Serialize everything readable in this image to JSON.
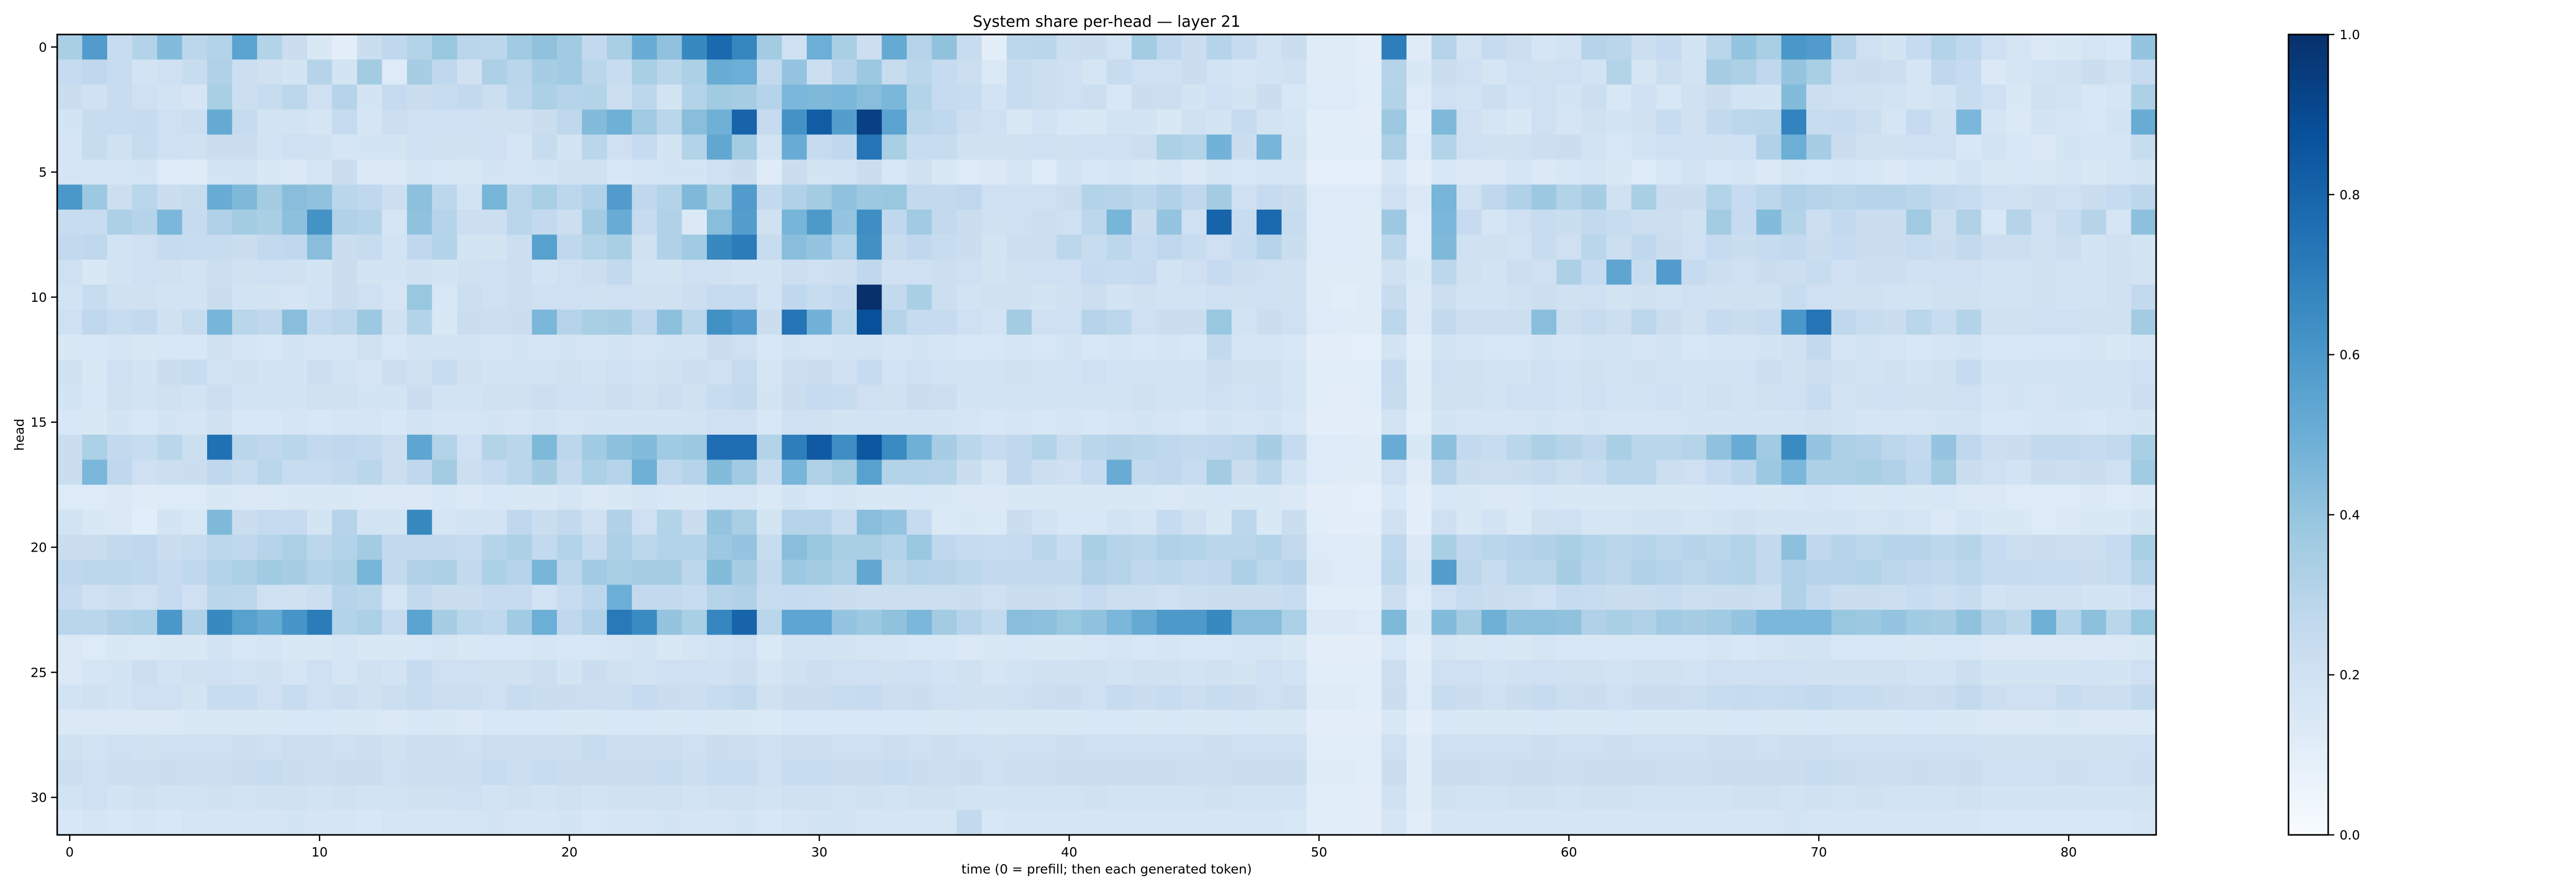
{
  "chart_data": {
    "type": "heatmap",
    "title": "System share per-head — layer 21",
    "xlabel": "time (0 = prefill; then each generated token)",
    "ylabel": "head",
    "n_cols": 84,
    "n_rows": 32,
    "x_range": [
      -0.5,
      83.5
    ],
    "y_range": [
      -0.5,
      31.5
    ],
    "x_ticks": [
      0,
      10,
      20,
      30,
      40,
      50,
      60,
      70,
      80
    ],
    "y_ticks": [
      0,
      5,
      10,
      15,
      20,
      25,
      30
    ],
    "colormap": "Blues",
    "colorbar": {
      "range": [
        0.0,
        1.0
      ],
      "ticks": [
        0.0,
        0.2,
        0.4,
        0.6,
        0.8,
        1.0
      ]
    },
    "values": [
      "0.34 0.58 0.24 0.31 0.44 0.28 0.31 0.55 0.31 0.23 0.15 0.10 0.23 0.27 0.31 0.39 0.29 0.28 0.37 0.41 0.37 0.26 0.34 0.51 0.41 0.66 0.78 0.67 0.36 0.21 0.50 0.34 0.22 0.52 0.30 0.41 0.24 0.10 0.28 0.29 0.22 0.23 0.19 0.36 0.27 0.23 0.30 0.25 0.19 0.23 0.12 0.12 0.10 0.70 0.12 0.30 0.19 0.25 0.22 0.17 0.19 0.30 0.29 0.22 0.25 0.18 0.29 0.40 0.34 0.60 0.58 0.30 0.21 0.18 0.25 0.31 0.27 0.21 0.17 0.14 0.15 0.17 0.16 0.40",
      "0.25 0.27 0.24 0.19 0.21 0.24 0.32 0.22 0.20 0.18 0.30 0.18 0.36 0.13 0.35 0.27 0.20 0.33 0.29 0.35 0.37 0.29 0.24 0.34 0.29 0.33 0.51 0.50 0.26 0.40 0.22 0.30 0.38 0.24 0.29 0.25 0.22 0.14 0.24 0.22 0.21 0.17 0.24 0.21 0.21 0.23 0.19 0.17 0.19 0.20 0.12 0.12 0.11 0.30 0.15 0.23 0.21 0.17 0.21 0.20 0.21 0.19 0.31 0.17 0.22 0.19 0.35 0.33 0.27 0.40 0.34 0.22 0.23 0.22 0.17 0.27 0.25 0.14 0.17 0.19 0.20 0.23 0.20 0.25",
      "0.23 0.20 0.24 0.21 0.19 0.17 0.34 0.22 0.24 0.28 0.21 0.30 0.18 0.25 0.23 0.24 0.26 0.22 0.28 0.33 0.30 0.31 0.22 0.28 0.18 0.31 0.37 0.35 0.30 0.46 0.45 0.46 0.43 0.46 0.31 0.25 0.24 0.19 0.24 0.22 0.21 0.22 0.16 0.23 0.22 0.18 0.21 0.18 0.23 0.16 0.13 0.13 0.11 0.31 0.13 0.21 0.19 0.22 0.19 0.21 0.18 0.22 0.16 0.21 0.16 0.20 0.23 0.19 0.18 0.44 0.22 0.21 0.20 0.19 0.17 0.19 0.24 0.21 0.15 0.20 0.19 0.16 0.17 0.33",
      "0.18 0.24 0.24 0.25 0.21 0.22 0.52 0.25 0.18 0.19 0.17 0.25 0.17 0.22 0.21 0.21 0.21 0.20 0.20 0.23 0.27 0.44 0.49 0.37 0.29 0.43 0.49 0.80 0.25 0.62 0.83 0.57 0.94 0.55 0.29 0.27 0.22 0.21 0.15 0.19 0.16 0.15 0.19 0.18 0.15 0.20 0.18 0.25 0.19 0.17 0.11 0.11 0.10 0.38 0.11 0.45 0.21 0.17 0.15 0.21 0.17 0.20 0.18 0.20 0.24 0.20 0.26 0.28 0.29 0.68 0.24 0.25 0.22 0.17 0.25 0.20 0.46 0.17 0.14 0.18 0.17 0.16 0.19 0.51",
      "0.17 0.24 0.20 0.24 0.21 0.20 0.23 0.23 0.19 0.21 0.20 0.17 0.18 0.18 0.21 0.20 0.20 0.21 0.17 0.24 0.18 0.29 0.21 0.25 0.18 0.31 0.53 0.36 0.19 0.51 0.25 0.27 0.74 0.34 0.24 0.24 0.20 0.20 0.20 0.21 0.20 0.21 0.21 0.22 0.33 0.31 0.48 0.23 0.47 0.18 0.11 0.11 0.11 0.33 0.13 0.31 0.21 0.20 0.20 0.22 0.23 0.19 0.16 0.19 0.21 0.21 0.20 0.21 0.32 0.50 0.35 0.23 0.20 0.20 0.21 0.21 0.16 0.19 0.16 0.14 0.18 0.17 0.17 0.24",
      "0.17 0.17 0.17 0.18 0.13 0.12 0.18 0.19 0.15 0.14 0.17 0.23 0.14 0.14 0.17 0.16 0.15 0.18 0.17 0.18 0.20 0.20 0.16 0.17 0.18 0.18 0.21 0.23 0.12 0.23 0.18 0.19 0.23 0.16 0.20 0.15 0.13 0.14 0.17 0.13 0.18 0.16 0.17 0.15 0.17 0.14 0.17 0.16 0.17 0.17 0.09 0.09 0.09 0.17 0.10 0.16 0.14 0.14 0.17 0.14 0.16 0.17 0.15 0.13 0.16 0.19 0.16 0.17 0.14 0.17 0.16 0.17 0.16 0.14 0.16 0.15 0.18 0.15 0.16 0.15 0.17 0.15 0.17 0.18",
      "0.60 0.38 0.22 0.29 0.23 0.24 0.51 0.45 0.36 0.43 0.41 0.29 0.27 0.22 0.42 0.28 0.19 0.47 0.29 0.34 0.28 0.32 0.58 0.27 0.31 0.45 0.34 0.58 0.26 0.32 0.36 0.41 0.38 0.39 0.26 0.26 0.27 0.21 0.21 0.21 0.23 0.31 0.30 0.28 0.32 0.27 0.36 0.21 0.25 0.23 0.13 0.13 0.13 0.21 0.14 0.47 0.20 0.27 0.32 0.38 0.31 0.35 0.20 0.34 0.23 0.23 0.31 0.25 0.28 0.32 0.30 0.29 0.30 0.30 0.29 0.26 0.24 0.21 0.20 0.22 0.21 0.23 0.25 0.28",
      "0.24 0.24 0.33 0.30 0.46 0.25 0.32 0.36 0.34 0.42 0.62 0.32 0.30 0.17 0.41 0.30 0.22 0.22 0.29 0.26 0.22 0.36 0.51 0.25 0.32 0.14 0.43 0.57 0.20 0.47 0.59 0.40 0.64 0.27 0.37 0.26 0.23 0.20 0.21 0.22 0.21 0.28 0.47 0.23 0.40 0.21 0.80 0.24 0.78 0.24 0.13 0.13 0.12 0.38 0.13 0.46 0.25 0.17 0.21 0.24 0.23 0.26 0.24 0.22 0.22 0.20 0.36 0.25 0.44 0.31 0.22 0.26 0.23 0.23 0.37 0.22 0.32 0.16 0.30 0.21 0.24 0.30 0.17 0.42",
      "0.26 0.27 0.19 0.21 0.25 0.24 0.24 0.23 0.26 0.27 0.43 0.23 0.24 0.19 0.27 0.31 0.18 0.18 0.22 0.56 0.27 0.31 0.34 0.20 0.32 0.37 0.66 0.71 0.24 0.43 0.40 0.31 0.63 0.24 0.27 0.24 0.23 0.18 0.22 0.22 0.28 0.24 0.28 0.24 0.27 0.24 0.21 0.25 0.30 0.23 0.13 0.13 0.12 0.28 0.13 0.45 0.20 0.20 0.19 0.24 0.21 0.29 0.22 0.27 0.23 0.21 0.25 0.23 0.25 0.26 0.23 0.25 0.23 0.23 0.24 0.23 0.26 0.22 0.22 0.20 0.22 0.18 0.20 0.18",
      "0.21 0.15 0.19 0.21 0.20 0.19 0.22 0.20 0.21 0.20 0.18 0.23 0.18 0.18 0.20 0.18 0.20 0.21 0.22 0.19 0.21 0.22 0.26 0.19 0.18 0.21 0.20 0.19 0.18 0.22 0.21 0.22 0.27 0.20 0.21 0.22 0.21 0.18 0.20 0.21 0.21 0.25 0.24 0.25 0.19 0.21 0.25 0.22 0.21 0.20 0.12 0.12 0.12 0.20 0.15 0.28 0.20 0.18 0.22 0.21 0.33 0.25 0.54 0.24 0.58 0.25 0.22 0.21 0.23 0.22 0.24 0.21 0.22 0.22 0.20 0.21 0.21 0.19 0.19 0.20 0.19 0.18 0.20 0.19",
      "0.19 0.24 0.20 0.20 0.19 0.19 0.23 0.19 0.18 0.17 0.19 0.23 0.21 0.17 0.39 0.16 0.22 0.21 0.22 0.21 0.21 0.20 0.21 0.20 0.20 0.22 0.25 0.25 0.19 0.27 0.24 0.26 1.00 0.26 0.34 0.22 0.19 0.20 0.20 0.18 0.20 0.22 0.18 0.20 0.19 0.19 0.21 0.20 0.21 0.20 0.12 0.11 0.12 0.24 0.14 0.22 0.19 0.19 0.20 0.22 0.20 0.21 0.18 0.20 0.19 0.21 0.20 0.20 0.20 0.24 0.21 0.20 0.20 0.19 0.19 0.20 0.20 0.19 0.19 0.20 0.19 0.19 0.20 0.26",
      "0.21 0.27 0.24 0.26 0.20 0.24 0.47 0.29 0.27 0.43 0.26 0.28 0.38 0.20 0.31 0.15 0.23 0.22 0.23 0.46 0.30 0.34 0.35 0.27 0.42 0.29 0.63 0.58 0.23 0.74 0.48 0.29 0.88 0.30 0.25 0.25 0.21 0.19 0.36 0.21 0.21 0.30 0.28 0.21 0.23 0.23 0.39 0.19 0.23 0.21 0.13 0.12 0.12 0.28 0.14 0.26 0.22 0.22 0.22 0.43 0.22 0.24 0.22 0.28 0.23 0.20 0.25 0.23 0.25 0.60 0.74 0.27 0.24 0.23 0.29 0.24 0.31 0.20 0.20 0.21 0.21 0.20 0.20 0.36",
      "0.15 0.16 0.17 0.15 0.16 0.16 0.20 0.17 0.16 0.18 0.17 0.17 0.20 0.16 0.18 0.18 0.18 0.17 0.18 0.17 0.18 0.17 0.18 0.17 0.18 0.18 0.23 0.21 0.16 0.18 0.17 0.18 0.19 0.17 0.18 0.17 0.16 0.16 0.17 0.16 0.18 0.16 0.17 0.16 0.17 0.16 0.26 0.17 0.17 0.16 0.10 0.10 0.09 0.18 0.11 0.19 0.17 0.16 0.16 0.18 0.17 0.19 0.18 0.17 0.18 0.16 0.17 0.17 0.18 0.20 0.26 0.17 0.18 0.17 0.16 0.17 0.18 0.16 0.16 0.16 0.16 0.17 0.15 0.17",
      "0.20 0.15 0.21 0.18 0.23 0.24 0.19 0.20 0.18 0.18 0.22 0.19 0.17 0.22 0.20 0.24 0.20 0.18 0.19 0.19 0.20 0.19 0.21 0.19 0.20 0.22 0.21 0.25 0.17 0.22 0.23 0.21 0.25 0.19 0.21 0.19 0.18 0.19 0.20 0.19 0.19 0.21 0.19 0.19 0.18 0.19 0.22 0.20 0.20 0.17 0.11 0.11 0.11 0.25 0.12 0.21 0.20 0.19 0.18 0.21 0.19 0.20 0.19 0.20 0.19 0.19 0.19 0.19 0.22 0.20 0.22 0.20 0.19 0.20 0.18 0.20 0.25 0.18 0.18 0.19 0.19 0.18 0.19 0.21",
      "0.18 0.16 0.20 0.19 0.20 0.19 0.22 0.19 0.19 0.18 0.20 0.20 0.18 0.18 0.23 0.19 0.19 0.20 0.20 0.22 0.21 0.20 0.22 0.20 0.22 0.20 0.24 0.26 0.18 0.23 0.25 0.24 0.21 0.20 0.23 0.22 0.18 0.18 0.19 0.19 0.18 0.19 0.19 0.20 0.19 0.19 0.21 0.19 0.21 0.17 0.11 0.10 0.11 0.24 0.12 0.20 0.20 0.19 0.21 0.21 0.19 0.21 0.19 0.19 0.21 0.18 0.20 0.19 0.20 0.21 0.24 0.19 0.20 0.21 0.20 0.20 0.21 0.17 0.18 0.17 0.19 0.18 0.18 0.22",
      "0.16 0.15 0.18 0.16 0.18 0.17 0.20 0.16 0.16 0.17 0.16 0.17 0.17 0.16 0.19 0.17 0.17 0.18 0.17 0.19 0.17 0.18 0.18 0.18 0.18 0.19 0.21 0.21 0.16 0.21 0.20 0.18 0.19 0.18 0.19 0.18 0.17 0.16 0.17 0.16 0.17 0.16 0.17 0.18 0.17 0.16 0.18 0.17 0.18 0.16 0.10 0.10 0.10 0.19 0.11 0.18 0.17 0.17 0.17 0.18 0.17 0.18 0.17 0.17 0.17 0.18 0.18 0.18 0.18 0.19 0.20 0.18 0.17 0.17 0.17 0.18 0.19 0.16 0.16 0.17 0.17 0.16 0.17 0.18",
      "0.23 0.33 0.26 0.24 0.29 0.22 0.75 0.29 0.27 0.29 0.26 0.27 0.26 0.22 0.54 0.31 0.21 0.31 0.29 0.45 0.28 0.37 0.42 0.44 0.37 0.38 0.76 0.76 0.31 0.70 0.84 0.64 0.85 0.65 0.49 0.35 0.29 0.25 0.27 0.31 0.24 0.29 0.30 0.29 0.27 0.26 0.27 0.28 0.35 0.25 0.13 0.13 0.12 0.51 0.15 0.42 0.26 0.24 0.29 0.33 0.30 0.27 0.34 0.29 0.29 0.30 0.41 0.51 0.37 0.65 0.40 0.33 0.32 0.28 0.26 0.40 0.27 0.22 0.23 0.26 0.26 0.25 0.26 0.34",
      "0.23 0.46 0.27 0.21 0.22 0.23 0.27 0.24 0.29 0.24 0.24 0.26 0.29 0.22 0.27 0.36 0.22 0.25 0.29 0.35 0.26 0.33 0.30 0.49 0.27 0.30 0.44 0.37 0.24 0.47 0.32 0.36 0.56 0.31 0.31 0.30 0.23 0.17 0.27 0.22 0.21 0.25 0.51 0.26 0.27 0.24 0.36 0.23 0.29 0.19 0.13 0.12 0.12 0.21 0.12 0.30 0.23 0.22 0.23 0.25 0.22 0.24 0.29 0.29 0.22 0.21 0.25 0.28 0.38 0.46 0.33 0.33 0.34 0.32 0.27 0.36 0.23 0.21 0.19 0.23 0.22 0.23 0.21 0.37",
      "0.13 0.13 0.14 0.12 0.13 0.13 0.15 0.14 0.14 0.15 0.15 0.15 0.14 0.14 0.14 0.16 0.14 0.16 0.15 0.15 0.17 0.14 0.15 0.17 0.16 0.15 0.17 0.17 0.14 0.18 0.16 0.17 0.15 0.15 0.16 0.15 0.14 0.14 0.15 0.15 0.15 0.15 0.15 0.15 0.14 0.15 0.16 0.15 0.15 0.14 0.10 0.10 0.09 0.16 0.10 0.16 0.15 0.14 0.14 0.16 0.15 0.15 0.15 0.15 0.15 0.15 0.16 0.16 0.15 0.16 0.17 0.16 0.15 0.16 0.15 0.16 0.14 0.14 0.13 0.13 0.13 0.14 0.13 0.14",
      "0.19 0.15 0.14 0.11 0.18 0.16 0.45 0.23 0.25 0.25 0.18 0.30 0.19 0.18 0.66 0.17 0.19 0.19 0.27 0.23 0.26 0.20 0.32 0.21 0.31 0.23 0.40 0.34 0.18 0.30 0.30 0.24 0.43 0.40 0.25 0.14 0.15 0.14 0.23 0.19 0.16 0.16 0.19 0.17 0.25 0.20 0.15 0.28 0.15 0.23 0.11 0.10 0.10 0.20 0.10 0.21 0.15 0.19 0.14 0.20 0.21 0.17 0.17 0.18 0.19 0.17 0.18 0.20 0.18 0.19 0.18 0.19 0.17 0.18 0.17 0.14 0.17 0.15 0.15 0.13 0.14 0.15 0.15 0.18",
      "0.23 0.23 0.26 0.27 0.23 0.24 0.28 0.27 0.30 0.33 0.28 0.31 0.36 0.26 0.26 0.26 0.25 0.30 0.33 0.26 0.31 0.25 0.33 0.28 0.31 0.31 0.38 0.40 0.24 0.43 0.39 0.34 0.34 0.31 0.39 0.27 0.25 0.24 0.25 0.29 0.24 0.34 0.30 0.29 0.32 0.31 0.29 0.29 0.31 0.26 0.13 0.13 0.12 0.27 0.14 0.34 0.27 0.29 0.30 0.32 0.34 0.31 0.29 0.30 0.28 0.30 0.29 0.31 0.26 0.42 0.27 0.30 0.28 0.30 0.30 0.28 0.30 0.25 0.22 0.23 0.22 0.22 0.25 0.34",
      "0.27 0.28 0.28 0.27 0.25 0.27 0.31 0.33 0.37 0.35 0.31 0.33 0.47 0.26 0.32 0.33 0.26 0.33 0.30 0.47 0.28 0.37 0.34 0.35 0.35 0.28 0.44 0.35 0.26 0.38 0.36 0.33 0.53 0.29 0.31 0.30 0.28 0.26 0.26 0.26 0.26 0.32 0.30 0.27 0.28 0.26 0.27 0.33 0.28 0.30 0.14 0.13 0.13 0.28 0.15 0.57 0.28 0.24 0.29 0.29 0.35 0.30 0.28 0.32 0.30 0.28 0.30 0.31 0.26 0.32 0.30 0.30 0.31 0.28 0.27 0.26 0.28 0.25 0.25 0.24 0.24 0.23 0.24 0.30",
      "0.25 0.20 0.22 0.21 0.25 0.21 0.29 0.28 0.21 0.20 0.22 0.30 0.29 0.17 0.26 0.23 0.23 0.25 0.25 0.19 0.24 0.28 0.50 0.26 0.26 0.24 0.30 0.32 0.24 0.25 0.24 0.23 0.22 0.22 0.22 0.22 0.23 0.21 0.23 0.23 0.22 0.25 0.22 0.22 0.21 0.22 0.23 0.23 0.23 0.24 0.11 0.11 0.11 0.22 0.13 0.21 0.24 0.23 0.22 0.21 0.25 0.24 0.23 0.23 0.24 0.22 0.23 0.23 0.22 0.32 0.26 0.23 0.23 0.22 0.24 0.22 0.24 0.19 0.20 0.20 0.20 0.18 0.18 0.21",
      "0.29 0.29 0.32 0.33 0.60 0.32 0.66 0.56 0.52 0.61 0.71 0.31 0.33 0.25 0.55 0.35 0.29 0.27 0.37 0.50 0.27 0.32 0.72 0.65 0.40 0.34 0.67 0.80 0.29 0.54 0.54 0.40 0.38 0.41 0.46 0.36 0.30 0.26 0.43 0.42 0.39 0.41 0.46 0.52 0.59 0.59 0.66 0.43 0.43 0.33 0.14 0.14 0.13 0.45 0.15 0.44 0.36 0.49 0.42 0.42 0.41 0.32 0.34 0.32 0.37 0.35 0.37 0.40 0.46 0.46 0.46 0.39 0.38 0.40 0.37 0.35 0.41 0.32 0.28 0.49 0.31 0.42 0.29 0.39",
      "0.14 0.13 0.15 0.14 0.15 0.15 0.19 0.16 0.17 0.15 0.15 0.17 0.15 0.15 0.16 0.17 0.15 0.16 0.16 0.17 0.16 0.16 0.17 0.18 0.15 0.17 0.19 0.21 0.14 0.19 0.19 0.18 0.17 0.17 0.16 0.16 0.14 0.15 0.16 0.15 0.15 0.16 0.17 0.16 0.17 0.16 0.16 0.17 0.17 0.15 0.10 0.10 0.10 0.16 0.11 0.17 0.15 0.16 0.15 0.17 0.16 0.16 0.16 0.16 0.16 0.16 0.17 0.16 0.17 0.18 0.19 0.16 0.16 0.16 0.15 0.16 0.16 0.14 0.14 0.14 0.14 0.14 0.14 0.15",
      "0.14 0.17 0.18 0.22 0.19 0.20 0.21 0.19 0.20 0.17 0.21 0.17 0.20 0.19 0.25 0.21 0.21 0.20 0.20 0.22 0.18 0.23 0.20 0.19 0.21 0.21 0.20 0.22 0.17 0.20 0.22 0.21 0.21 0.20 0.21 0.19 0.20 0.17 0.19 0.20 0.20 0.20 0.19 0.20 0.20 0.19 0.20 0.18 0.21 0.19 0.11 0.11 0.11 0.22 0.12 0.21 0.21 0.19 0.20 0.21 0.20 0.20 0.19 0.20 0.20 0.19 0.21 0.20 0.21 0.21 0.20 0.20 0.20 0.20 0.19 0.19 0.22 0.18 0.18 0.18 0.18 0.19 0.18 0.21",
      "0.19 0.20 0.18 0.21 0.21 0.18 0.24 0.24 0.21 0.24 0.21 0.22 0.20 0.22 0.24 0.22 0.22 0.21 0.24 0.23 0.23 0.22 0.22 0.25 0.23 0.22 0.24 0.26 0.20 0.23 0.23 0.24 0.25 0.22 0.23 0.21 0.20 0.20 0.21 0.22 0.23 0.21 0.25 0.23 0.24 0.22 0.24 0.23 0.21 0.22 0.12 0.12 0.11 0.23 0.13 0.24 0.23 0.21 0.23 0.25 0.22 0.23 0.21 0.23 0.23 0.22 0.24 0.25 0.24 0.25 0.26 0.24 0.24 0.23 0.22 0.23 0.26 0.22 0.21 0.21 0.24 0.22 0.22 0.26",
      "0.14 0.14 0.14 0.14 0.14 0.15 0.15 0.15 0.15 0.16 0.16 0.15 0.15 0.14 0.16 0.15 0.14 0.16 0.16 0.16 0.15 0.15 0.16 0.16 0.15 0.16 0.15 0.15 0.14 0.16 0.16 0.16 0.16 0.16 0.16 0.15 0.16 0.15 0.15 0.15 0.15 0.16 0.16 0.15 0.16 0.15 0.15 0.16 0.15 0.15 0.10 0.10 0.10 0.15 0.10 0.16 0.15 0.15 0.15 0.16 0.15 0.15 0.16 0.15 0.15 0.15 0.15 0.16 0.15 0.15 0.16 0.15 0.15 0.15 0.16 0.15 0.15 0.14 0.14 0.14 0.15 0.14 0.14 0.14",
      "0.20 0.19 0.21 0.20 0.21 0.21 0.21 0.22 0.21 0.22 0.22 0.21 0.22 0.20 0.22 0.22 0.21 0.22 0.22 0.22 0.22 0.24 0.22 0.22 0.22 0.21 0.23 0.22 0.21 0.22 0.22 0.21 0.21 0.22 0.21 0.22 0.21 0.20 0.21 0.21 0.22 0.21 0.21 0.21 0.21 0.21 0.22 0.21 0.21 0.21 0.11 0.11 0.11 0.21 0.12 0.21 0.21 0.21 0.21 0.22 0.21 0.21 0.22 0.21 0.21 0.21 0.22 0.22 0.21 0.22 0.22 0.21 0.21 0.21 0.21 0.21 0.21 0.20 0.20 0.20 0.20 0.20 0.20 0.21",
      "0.22 0.21 0.22 0.22 0.23 0.22 0.22 0.23 0.24 0.23 0.22 0.23 0.23 0.21 0.22 0.22 0.22 0.24 0.22 0.24 0.23 0.23 0.23 0.23 0.24 0.22 0.24 0.24 0.21 0.24 0.24 0.23 0.23 0.24 0.23 0.22 0.23 0.21 0.22 0.22 0.23 0.23 0.23 0.23 0.23 0.22 0.22 0.23 0.23 0.23 0.12 0.12 0.11 0.23 0.12 0.23 0.23 0.22 0.23 0.23 0.22 0.23 0.23 0.23 0.22 0.22 0.23 0.23 0.23 0.23 0.24 0.23 0.22 0.22 0.23 0.22 0.23 0.21 0.21 0.21 0.22 0.21 0.21 0.22",
      "0.19 0.21 0.18 0.20 0.19 0.19 0.20 0.19 0.20 0.20 0.19 0.20 0.19 0.19 0.20 0.20 0.21 0.19 0.20 0.19 0.20 0.19 0.20 0.20 0.20 0.19 0.20 0.20 0.19 0.20 0.20 0.19 0.20 0.19 0.20 0.20 0.19 0.18 0.19 0.19 0.19 0.20 0.19 0.19 0.19 0.19 0.20 0.19 0.19 0.19 0.11 0.11 0.10 0.20 0.12 0.20 0.19 0.19 0.20 0.20 0.19 0.20 0.20 0.19 0.19 0.19 0.19 0.20 0.20 0.19 0.20 0.19 0.20 0.19 0.19 0.19 0.20 0.18 0.18 0.18 0.18 0.18 0.18 0.19",
      "0.16 0.17 0.16 0.17 0.16 0.17 0.17 0.17 0.17 0.18 0.17 0.17 0.16 0.17 0.17 0.17 0.17 0.18 0.17 0.17 0.18 0.16 0.17 0.17 0.18 0.17 0.17 0.18 0.16 0.17 0.18 0.18 0.17 0.17 0.17 0.17 0.26 0.16 0.17 0.17 0.17 0.17 0.17 0.17 0.17 0.17 0.17 0.17 0.17 0.16 0.11 0.11 0.10 0.17 0.11 0.17 0.17 0.17 0.17 0.17 0.17 0.17 0.17 0.17 0.17 0.17 0.17 0.17 0.17 0.18 0.17 0.17 0.17 0.17 0.17 0.17 0.17 0.16 0.16 0.16 0.16 0.16 0.16 0.17"
    ]
  }
}
